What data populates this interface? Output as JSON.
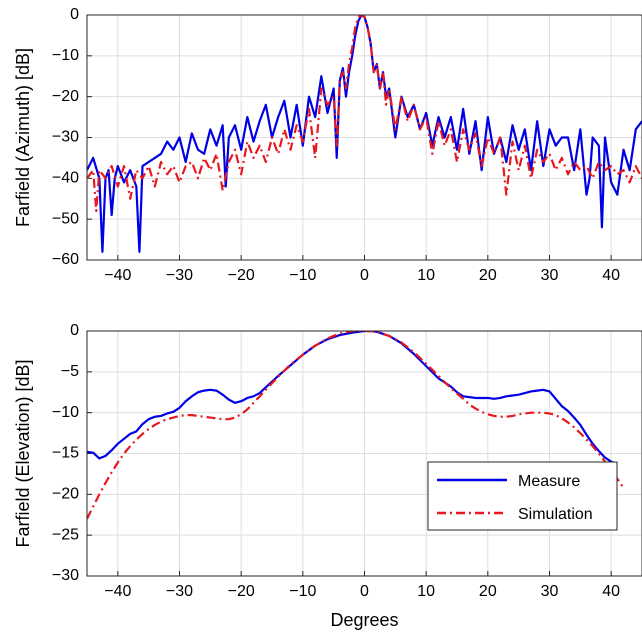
{
  "chart_data": [
    {
      "type": "line",
      "ylabel": "Farfield (Azimuth) [dB]",
      "xlabel": "",
      "xlim": [
        -45,
        45
      ],
      "ylim": [
        -60,
        0
      ],
      "xticks": [
        -40,
        -30,
        -20,
        -10,
        0,
        10,
        20,
        30,
        40
      ],
      "yticks": [
        0,
        -10,
        -20,
        -30,
        -40,
        -50,
        -60
      ],
      "xtick_labels": [
        "−40",
        "−30",
        "−20",
        "−10",
        "0",
        "10",
        "20",
        "30",
        "40"
      ],
      "ytick_labels": [
        "0",
        "−10",
        "−20",
        "−30",
        "−40",
        "−50",
        "−60"
      ],
      "grid": true,
      "series": [
        {
          "name": "Measure",
          "color": "#0000e6",
          "style": "solid",
          "x": [
            -45,
            -44,
            -43,
            -42.5,
            -42,
            -41.5,
            -41,
            -40.5,
            -40,
            -39,
            -38,
            -37,
            -36.5,
            -36,
            -35,
            -34,
            -33,
            -32,
            -31,
            -30,
            -29,
            -28,
            -27,
            -26,
            -25,
            -24,
            -23,
            -22.5,
            -22,
            -21,
            -20,
            -19,
            -18,
            -17,
            -16,
            -15,
            -14,
            -13,
            -12,
            -11,
            -10,
            -9,
            -8,
            -7,
            -6,
            -5,
            -4.5,
            -4,
            -3.5,
            -3,
            -2.5,
            -2,
            -1.5,
            -1,
            -0.5,
            0,
            0.5,
            1,
            1.5,
            2,
            2.5,
            3,
            3.5,
            4,
            5,
            6,
            7,
            8,
            9,
            10,
            11,
            12,
            13,
            14,
            15,
            16,
            17,
            18,
            19,
            20,
            21,
            22,
            23,
            24,
            25,
            26,
            27,
            28,
            29,
            30,
            31,
            32,
            33,
            34,
            35,
            36,
            36.5,
            37,
            38,
            38.5,
            39,
            40,
            41,
            42,
            43,
            44,
            45
          ],
          "y": [
            -38,
            -35,
            -40,
            -58,
            -40,
            -38,
            -49,
            -40,
            -37,
            -41,
            -38,
            -42,
            -58,
            -37,
            -36,
            -35,
            -34,
            -31,
            -33,
            -30,
            -36,
            -29,
            -33,
            -34,
            -28,
            -32,
            -27,
            -42,
            -30,
            -27,
            -33,
            -25,
            -31,
            -26,
            -22,
            -30,
            -25,
            -21,
            -30,
            -22,
            -32,
            -20,
            -25,
            -15,
            -24,
            -18,
            -35,
            -16,
            -13,
            -20,
            -14,
            -10,
            -5,
            -1.5,
            0,
            -0.5,
            -3,
            -7,
            -14,
            -12,
            -18,
            -14,
            -20,
            -18,
            -30,
            -20,
            -25,
            -22,
            -28,
            -24,
            -32,
            -25,
            -30,
            -25,
            -33,
            -23,
            -34,
            -26,
            -38,
            -25,
            -34,
            -30,
            -36,
            -27,
            -33,
            -28,
            -38,
            -26,
            -37,
            -28,
            -32,
            -30,
            -30,
            -38,
            -28,
            -44,
            -40,
            -30,
            -32,
            -52,
            -30,
            -41,
            -44,
            -33,
            -38,
            -28,
            -26
          ]
        },
        {
          "name": "Simulation",
          "color": "#e6191e",
          "style": "dashdot",
          "x": [
            -45,
            -44,
            -43.5,
            -43,
            -42,
            -41,
            -40,
            -39,
            -38,
            -37,
            -36,
            -35,
            -34,
            -33,
            -32,
            -31,
            -30,
            -29,
            -28,
            -27,
            -26,
            -25,
            -24,
            -23,
            -22,
            -21,
            -20,
            -19,
            -18,
            -17,
            -16,
            -15,
            -14,
            -13,
            -12,
            -11,
            -10,
            -9,
            -8,
            -7,
            -6,
            -5,
            -4.5,
            -4,
            -3.5,
            -3,
            -2.5,
            -2,
            -1.5,
            -1,
            -0.5,
            0,
            0.5,
            1,
            1.5,
            2,
            2.5,
            3,
            3.5,
            4,
            5,
            6,
            7,
            8,
            9,
            10,
            11,
            12,
            13,
            14,
            15,
            16,
            17,
            18,
            19,
            20,
            21,
            22,
            23,
            24,
            25,
            26,
            27,
            28,
            29,
            30,
            31,
            32,
            33,
            34,
            35,
            36,
            37,
            38,
            39,
            40,
            41,
            42,
            43,
            44,
            45
          ],
          "y": [
            -40,
            -38,
            -48,
            -38,
            -40,
            -37,
            -42,
            -37,
            -45,
            -38,
            -40,
            -37,
            -42,
            -36,
            -39,
            -37,
            -41,
            -37,
            -36,
            -40,
            -35,
            -38,
            -34,
            -43,
            -36,
            -33,
            -39,
            -31,
            -35,
            -32,
            -36,
            -30,
            -34,
            -28,
            -33,
            -27,
            -31,
            -23,
            -35,
            -18,
            -22,
            -20,
            -32,
            -16,
            -14,
            -18,
            -12,
            -8,
            -3,
            -0.5,
            0,
            -0.5,
            -3,
            -7,
            -14,
            -12,
            -18,
            -14,
            -22,
            -18,
            -28,
            -20,
            -26,
            -22,
            -28,
            -25,
            -34,
            -26,
            -32,
            -28,
            -36,
            -28,
            -33,
            -29,
            -37,
            -30,
            -34,
            -30,
            -44,
            -31,
            -38,
            -32,
            -40,
            -33,
            -36,
            -34,
            -38,
            -35,
            -39,
            -36,
            -38,
            -37,
            -40,
            -36,
            -38,
            -37,
            -39,
            -38,
            -41,
            -37,
            -40
          ]
        }
      ]
    },
    {
      "type": "line",
      "ylabel": "Farfield (Elevation) [dB]",
      "xlabel": "Degrees",
      "xlim": [
        -45,
        45
      ],
      "ylim": [
        -30,
        0
      ],
      "xticks": [
        -40,
        -30,
        -20,
        -10,
        0,
        10,
        20,
        30,
        40
      ],
      "yticks": [
        0,
        -5,
        -10,
        -15,
        -20,
        -25,
        -30
      ],
      "xtick_labels": [
        "−40",
        "−30",
        "−20",
        "−10",
        "0",
        "10",
        "20",
        "30",
        "40"
      ],
      "ytick_labels": [
        "0",
        "−5",
        "−10",
        "−15",
        "−20",
        "−25",
        "−30"
      ],
      "grid": true,
      "legend": {
        "position": "lower-right",
        "entries": [
          "Measure",
          "Simulation"
        ]
      },
      "series": [
        {
          "name": "Measure",
          "color": "#0000e6",
          "style": "solid",
          "x": [
            -45,
            -44,
            -43,
            -42,
            -41,
            -40,
            -39,
            -38,
            -37,
            -36,
            -35,
            -34,
            -33,
            -32,
            -31,
            -30,
            -29,
            -28,
            -27,
            -26,
            -25,
            -24,
            -23,
            -22,
            -21,
            -20,
            -19,
            -18,
            -17,
            -16,
            -15,
            -14,
            -12,
            -10,
            -8,
            -6,
            -4,
            -2,
            0,
            1,
            2,
            4,
            6,
            8,
            10,
            12,
            14,
            15,
            16,
            17,
            18,
            19,
            20,
            21,
            22,
            23,
            24,
            25,
            26,
            27,
            28,
            29,
            30,
            31,
            32,
            33,
            34,
            35,
            36,
            37,
            38,
            39,
            40,
            41
          ],
          "y": [
            -14.8,
            -14.9,
            -15.6,
            -15.3,
            -14.6,
            -13.8,
            -13.2,
            -12.6,
            -12.3,
            -11.4,
            -10.8,
            -10.5,
            -10.4,
            -10.1,
            -9.9,
            -9.4,
            -8.6,
            -8.0,
            -7.5,
            -7.3,
            -7.2,
            -7.3,
            -7.8,
            -8.4,
            -8.8,
            -8.6,
            -8.2,
            -8.0,
            -7.6,
            -6.9,
            -6.2,
            -5.5,
            -4.2,
            -2.9,
            -1.8,
            -1.0,
            -0.5,
            -0.2,
            0,
            0,
            -0.1,
            -0.6,
            -1.5,
            -2.8,
            -4.3,
            -5.8,
            -6.8,
            -7.5,
            -8.0,
            -8.1,
            -8.2,
            -8.2,
            -8.2,
            -8.3,
            -8.2,
            -8.0,
            -7.9,
            -7.8,
            -7.6,
            -7.4,
            -7.3,
            -7.2,
            -7.4,
            -8.3,
            -9.2,
            -9.8,
            -10.6,
            -11.5,
            -12.7,
            -13.8,
            -14.7,
            -15.5,
            -16.0,
            -16.3
          ]
        },
        {
          "name": "Simulation",
          "color": "#e6191e",
          "style": "dashdot",
          "x": [
            -45,
            -44,
            -43,
            -42,
            -41,
            -40,
            -39,
            -38,
            -37,
            -36,
            -35,
            -34,
            -33,
            -32,
            -31,
            -30,
            -29,
            -28,
            -27,
            -26,
            -25,
            -24,
            -23,
            -22,
            -21,
            -20,
            -19,
            -18,
            -17,
            -16,
            -15,
            -14,
            -12,
            -10,
            -8,
            -6,
            -4,
            -2,
            0,
            1,
            2,
            4,
            6,
            8,
            10,
            12,
            14,
            16,
            17,
            18,
            19,
            20,
            21,
            22,
            23,
            24,
            25,
            26,
            27,
            28,
            29,
            30,
            31,
            32,
            33,
            34,
            35,
            36,
            37,
            38,
            39,
            40,
            41,
            42
          ],
          "y": [
            -23.0,
            -21.5,
            -20.0,
            -18.6,
            -17.3,
            -16.1,
            -15.0,
            -14.1,
            -13.3,
            -12.6,
            -12.0,
            -11.5,
            -11.1,
            -10.8,
            -10.6,
            -10.4,
            -10.3,
            -10.3,
            -10.4,
            -10.5,
            -10.6,
            -10.7,
            -10.8,
            -10.8,
            -10.6,
            -10.2,
            -9.6,
            -8.8,
            -8.0,
            -7.2,
            -6.4,
            -5.6,
            -4.1,
            -2.9,
            -1.8,
            -0.9,
            -0.3,
            0,
            0,
            0,
            -0.1,
            -0.6,
            -1.4,
            -2.6,
            -4.0,
            -5.5,
            -7.0,
            -8.3,
            -9.0,
            -9.5,
            -9.9,
            -10.2,
            -10.4,
            -10.5,
            -10.5,
            -10.4,
            -10.2,
            -10.1,
            -10.0,
            -10.0,
            -10.0,
            -10.1,
            -10.3,
            -10.7,
            -11.2,
            -11.8,
            -12.5,
            -13.3,
            -14.1,
            -15.0,
            -16.0,
            -17.0,
            -18.1,
            -19.2
          ]
        }
      ]
    }
  ]
}
